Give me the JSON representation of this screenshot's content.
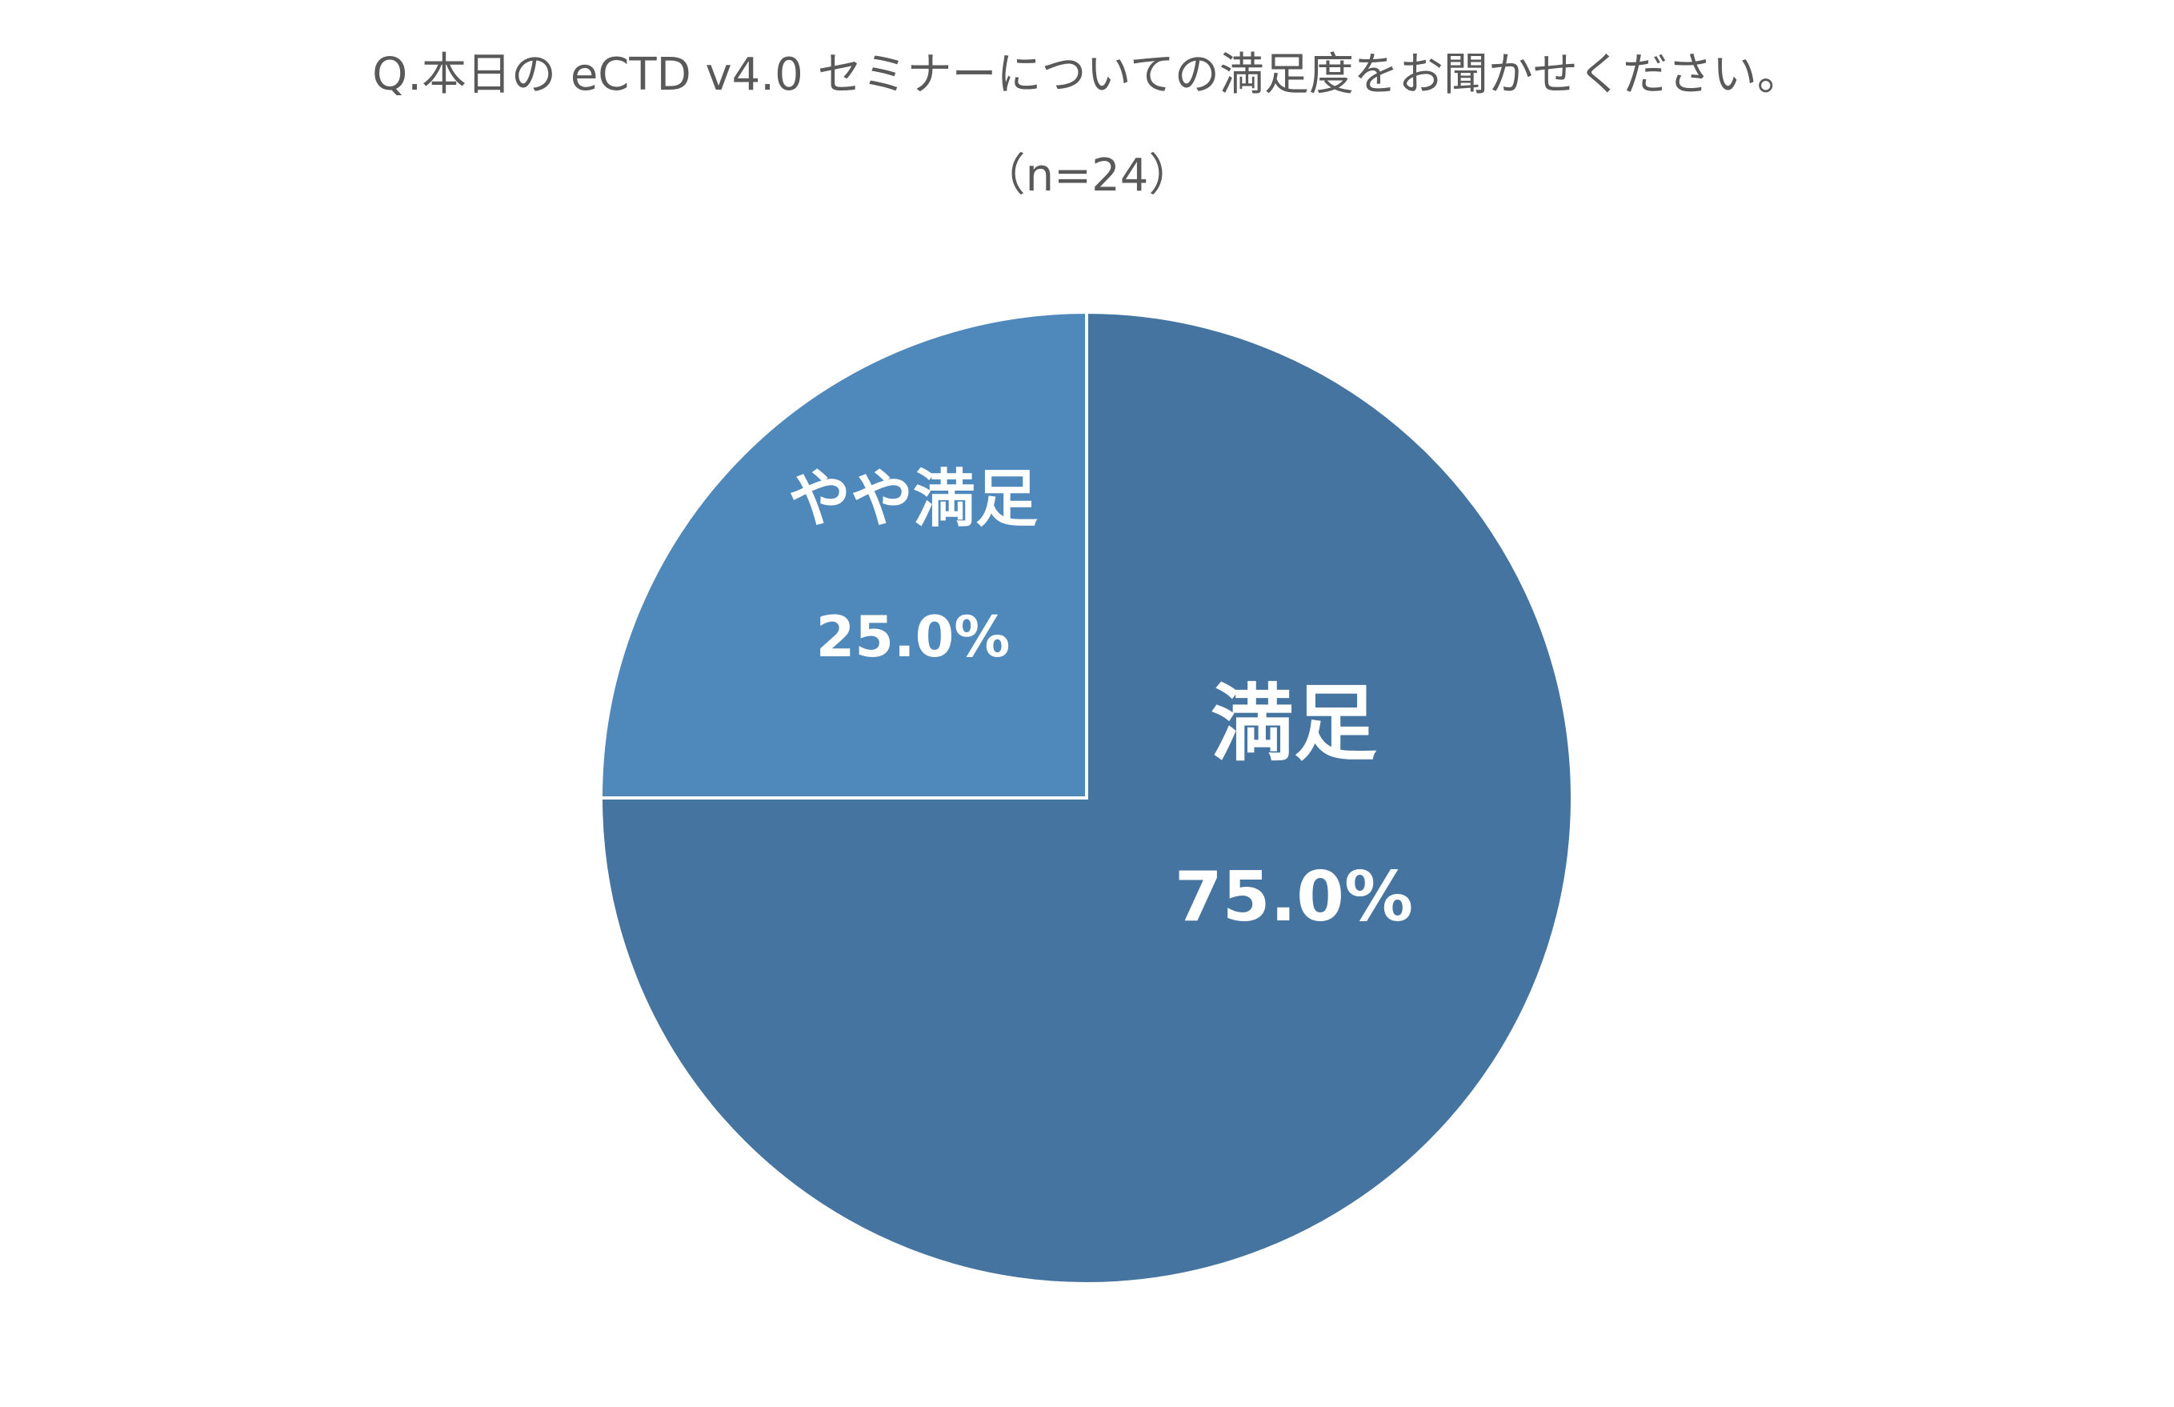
{
  "chart_data": {
    "type": "pie",
    "title": "Q.本日の eCTD v4.0 セミナーについての満足度をお聞かせください。",
    "subtitle": "（n=24）",
    "slices": [
      {
        "label": "満足",
        "value": 75.0,
        "value_text": "75.0%",
        "color": "#44749f"
      },
      {
        "label": "やや満足",
        "value": 25.0,
        "value_text": "25.0%",
        "color": "#4f88ba"
      }
    ],
    "start_angle": "top (12 o'clock)",
    "direction": "clockwise",
    "slice_border_color": "#ffffff",
    "legend": "none (labels inside slices)"
  }
}
